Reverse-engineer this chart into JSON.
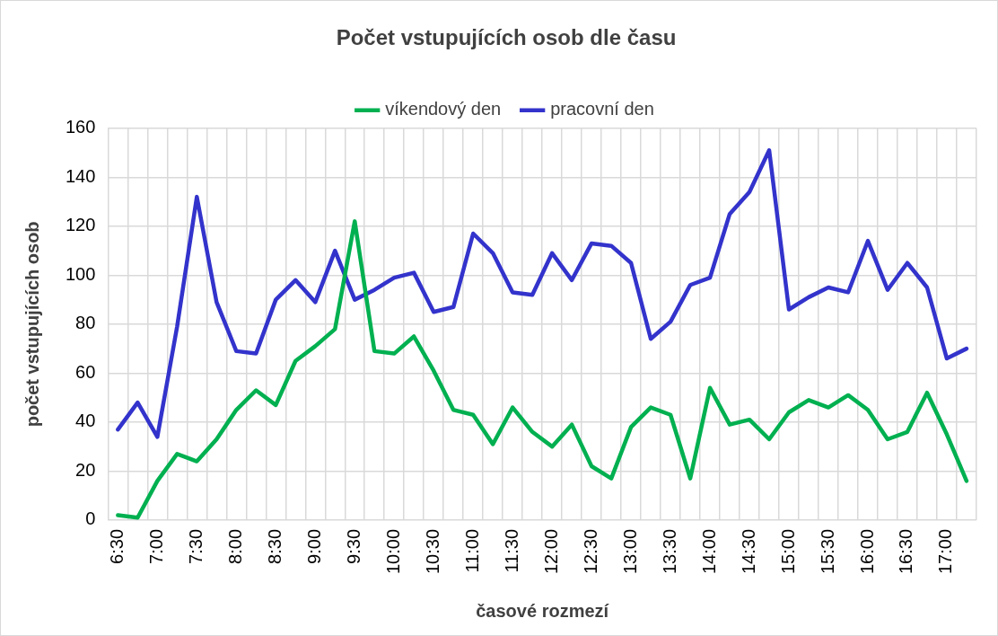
{
  "chart_data": {
    "type": "line",
    "title": "Počet vstupujících osob dle času",
    "xlabel": "časové rozmezí",
    "ylabel": "počet vstupujících osob",
    "categories": [
      "6:30",
      null,
      "7:00",
      null,
      "7:30",
      null,
      "8:00",
      null,
      "8:30",
      null,
      "9:00",
      null,
      "9:30",
      null,
      "10:00",
      null,
      "10:30",
      null,
      "11:00",
      null,
      "11:30",
      null,
      "12:00",
      null,
      "12:30",
      null,
      "13:00",
      null,
      "13:30",
      null,
      "14:00",
      null,
      "14:30",
      null,
      "15:00",
      null,
      "15:30",
      null,
      "16:00",
      null,
      "16:30",
      null,
      "17:00",
      null
    ],
    "series": [
      {
        "name": "víkendový den",
        "color": "#00b050",
        "values": [
          2,
          1,
          16,
          27,
          24,
          33,
          45,
          53,
          47,
          65,
          71,
          78,
          122,
          69,
          68,
          75,
          61,
          45,
          43,
          31,
          46,
          36,
          30,
          39,
          22,
          17,
          38,
          46,
          43,
          17,
          54,
          39,
          41,
          33,
          44,
          49,
          46,
          51,
          45,
          33,
          36,
          52,
          35,
          16
        ]
      },
      {
        "name": "pracovní den",
        "color": "#3333cc",
        "values": [
          37,
          48,
          34,
          79,
          132,
          89,
          69,
          68,
          90,
          98,
          89,
          110,
          90,
          94,
          99,
          101,
          85,
          87,
          117,
          109,
          93,
          92,
          109,
          98,
          113,
          112,
          105,
          74,
          81,
          96,
          99,
          125,
          134,
          151,
          86,
          91,
          95,
          93,
          114,
          94,
          105,
          95,
          66,
          70
        ]
      }
    ],
    "ylim": [
      0,
      160
    ],
    "yticks": [
      0,
      20,
      40,
      60,
      80,
      100,
      120,
      140,
      160
    ],
    "grid": true,
    "legend": "top",
    "marker": "none",
    "line_style": "solid"
  }
}
